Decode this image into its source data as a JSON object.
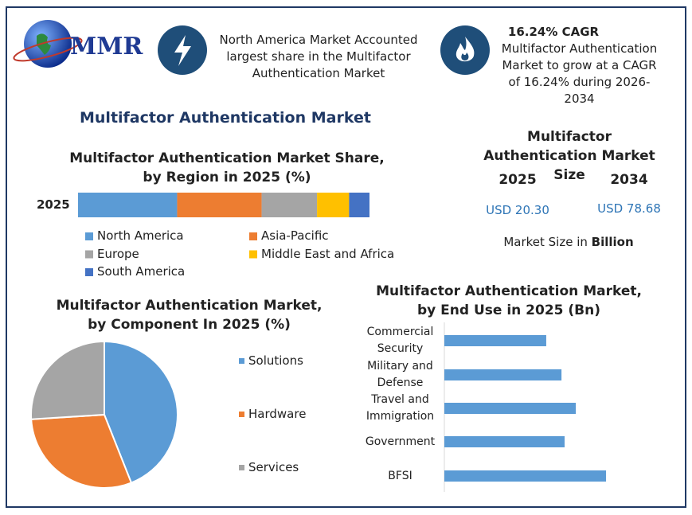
{
  "header": {
    "logo": "MMR",
    "highlight_1": "North America Market Accounted largest share in the Multifactor Authentication Market",
    "highlight_2_title": "16.24% CAGR",
    "highlight_2": "Multifactor Authentication Market to grow at a CAGR of 16.24% during 2026-2034"
  },
  "main_title": "Multifactor Authentication Market",
  "market_size": {
    "title": "Multifactor Authentication Market Size",
    "years": [
      "2025",
      "2034"
    ],
    "values": [
      "USD 20.30",
      "USD 78.68"
    ],
    "note": "Market Size in ",
    "note_unit": "Billion"
  },
  "chart_data": [
    {
      "type": "stacked_bar",
      "title": "Multifactor Authentication Market Share, by Region in 2025 (%)",
      "categories": [
        "2025"
      ],
      "xlim": [
        0,
        100
      ],
      "series": [
        {
          "name": "North America",
          "color": "#5b9bd5",
          "values": [
            34
          ]
        },
        {
          "name": "Asia-Pacific",
          "color": "#ed7d31",
          "values": [
            29
          ]
        },
        {
          "name": "Europe",
          "color": "#a5a5a5",
          "values": [
            19
          ]
        },
        {
          "name": "Middle East and Africa",
          "color": "#ffc000",
          "values": [
            11
          ]
        },
        {
          "name": "South America",
          "color": "#4472c4",
          "values": [
            7
          ]
        }
      ]
    },
    {
      "type": "pie",
      "title": "Multifactor Authentication Market, by Component In 2025 (%)",
      "categories": [
        "Solutions",
        "Hardware",
        "Services"
      ],
      "values": [
        44,
        30,
        26
      ],
      "colors": [
        "#5b9bd5",
        "#ed7d31",
        "#a5a5a5"
      ]
    },
    {
      "type": "hbar",
      "title": "Multifactor Authentication Market, by End Use in 2025 (Bn)",
      "categories": [
        "Commercial Security",
        "Military and Defense",
        "Travel and Immigration",
        "Government",
        "BFSI"
      ],
      "values": [
        3.27,
        3.76,
        4.22,
        3.86,
        5.19
      ],
      "color": "#5b9bd5",
      "xlim": [
        0,
        8
      ]
    }
  ]
}
